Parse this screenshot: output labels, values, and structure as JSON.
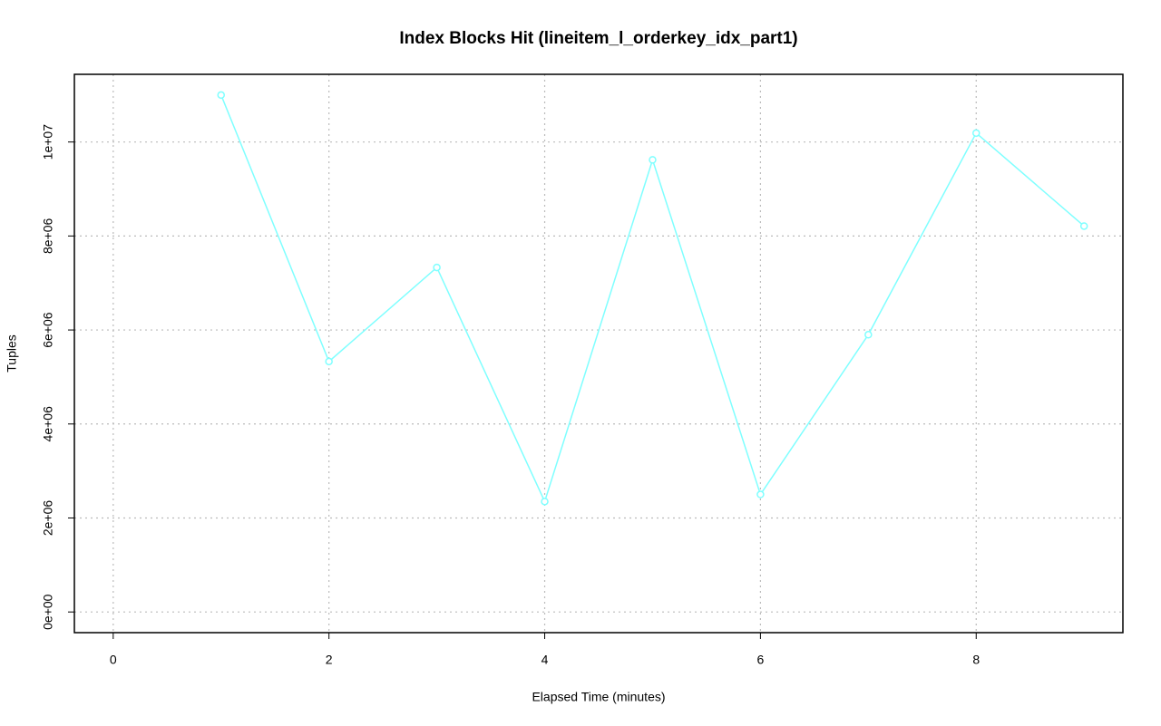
{
  "chart_data": {
    "type": "line",
    "title": "Index Blocks Hit (lineitem_l_orderkey_idx_part1)",
    "xlabel": "Elapsed Time (minutes)",
    "ylabel": "Tuples",
    "x": [
      1,
      2,
      3,
      4,
      5,
      6,
      7,
      8,
      9
    ],
    "series": [
      {
        "color": "#7fffff",
        "values": [
          11000000,
          5330000,
          7330000,
          2350000,
          9620000,
          2500000,
          5900000,
          10190000,
          8210000
        ]
      }
    ],
    "xlim": [
      -0.36,
      9.36
    ],
    "ylim": [
      -440000,
      11440000
    ],
    "xticks": [
      0,
      2,
      4,
      6,
      8
    ],
    "yticks": [
      {
        "value": 0,
        "label": "0e+00"
      },
      {
        "value": 2000000,
        "label": "2e+06"
      },
      {
        "value": 4000000,
        "label": "4e+06"
      },
      {
        "value": 6000000,
        "label": "6e+06"
      },
      {
        "value": 8000000,
        "label": "8e+06"
      },
      {
        "value": 10000000,
        "label": "1e+07"
      }
    ],
    "grid": true
  }
}
